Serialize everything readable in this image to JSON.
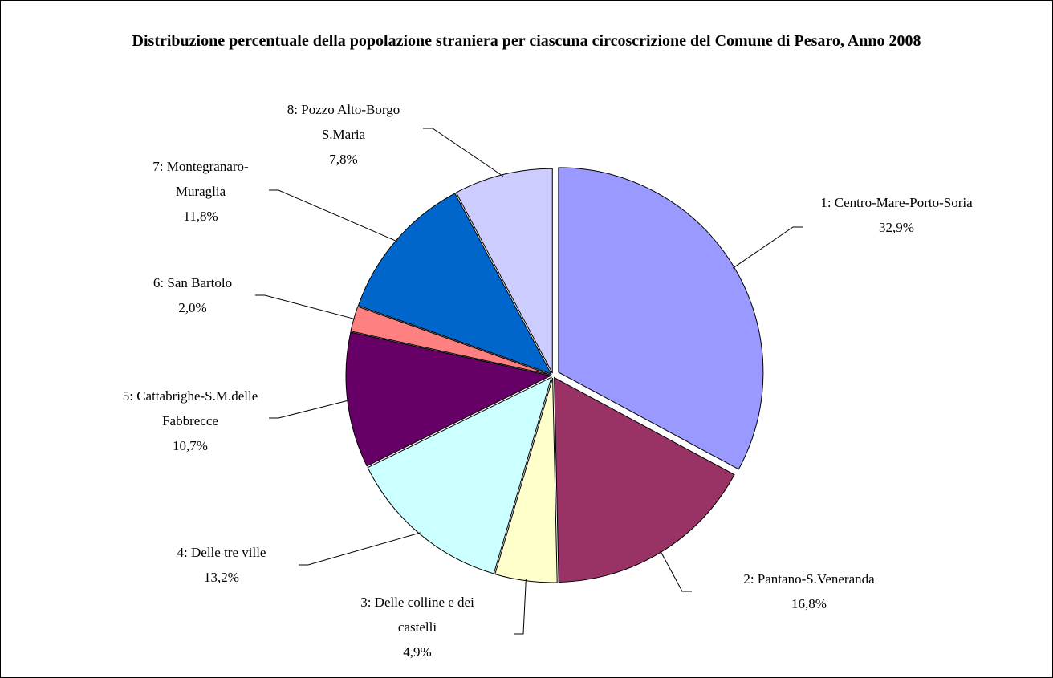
{
  "chart_data": {
    "type": "pie",
    "title": "Distribuzione percentuale della popolazione straniera per ciascuna circoscrizione del Comune di Pesaro, Anno 2008",
    "categories": [
      "1: Centro-Mare-Porto-Soria",
      "2: Pantano-S.Veneranda",
      "3: Delle colline e dei castelli",
      "4: Delle tre ville",
      "5: Cattabrighe-S.M.delle Fabbrecce",
      "6: San Bartolo",
      "7: Montegranaro-Muraglia",
      "8: Pozzo Alto-Borgo S.Maria"
    ],
    "values": [
      32.9,
      16.8,
      4.9,
      13.2,
      10.7,
      2.0,
      11.8,
      7.8
    ],
    "value_labels": [
      "32,9%",
      "16,8%",
      "4,9%",
      "13,2%",
      "10,7%",
      "2,0%",
      "11,8%",
      "7,8%"
    ],
    "colors": [
      "#9999ff",
      "#993366",
      "#ffffcc",
      "#ccffff",
      "#660066",
      "#ff8080",
      "#0066cc",
      "#ccccff"
    ]
  }
}
